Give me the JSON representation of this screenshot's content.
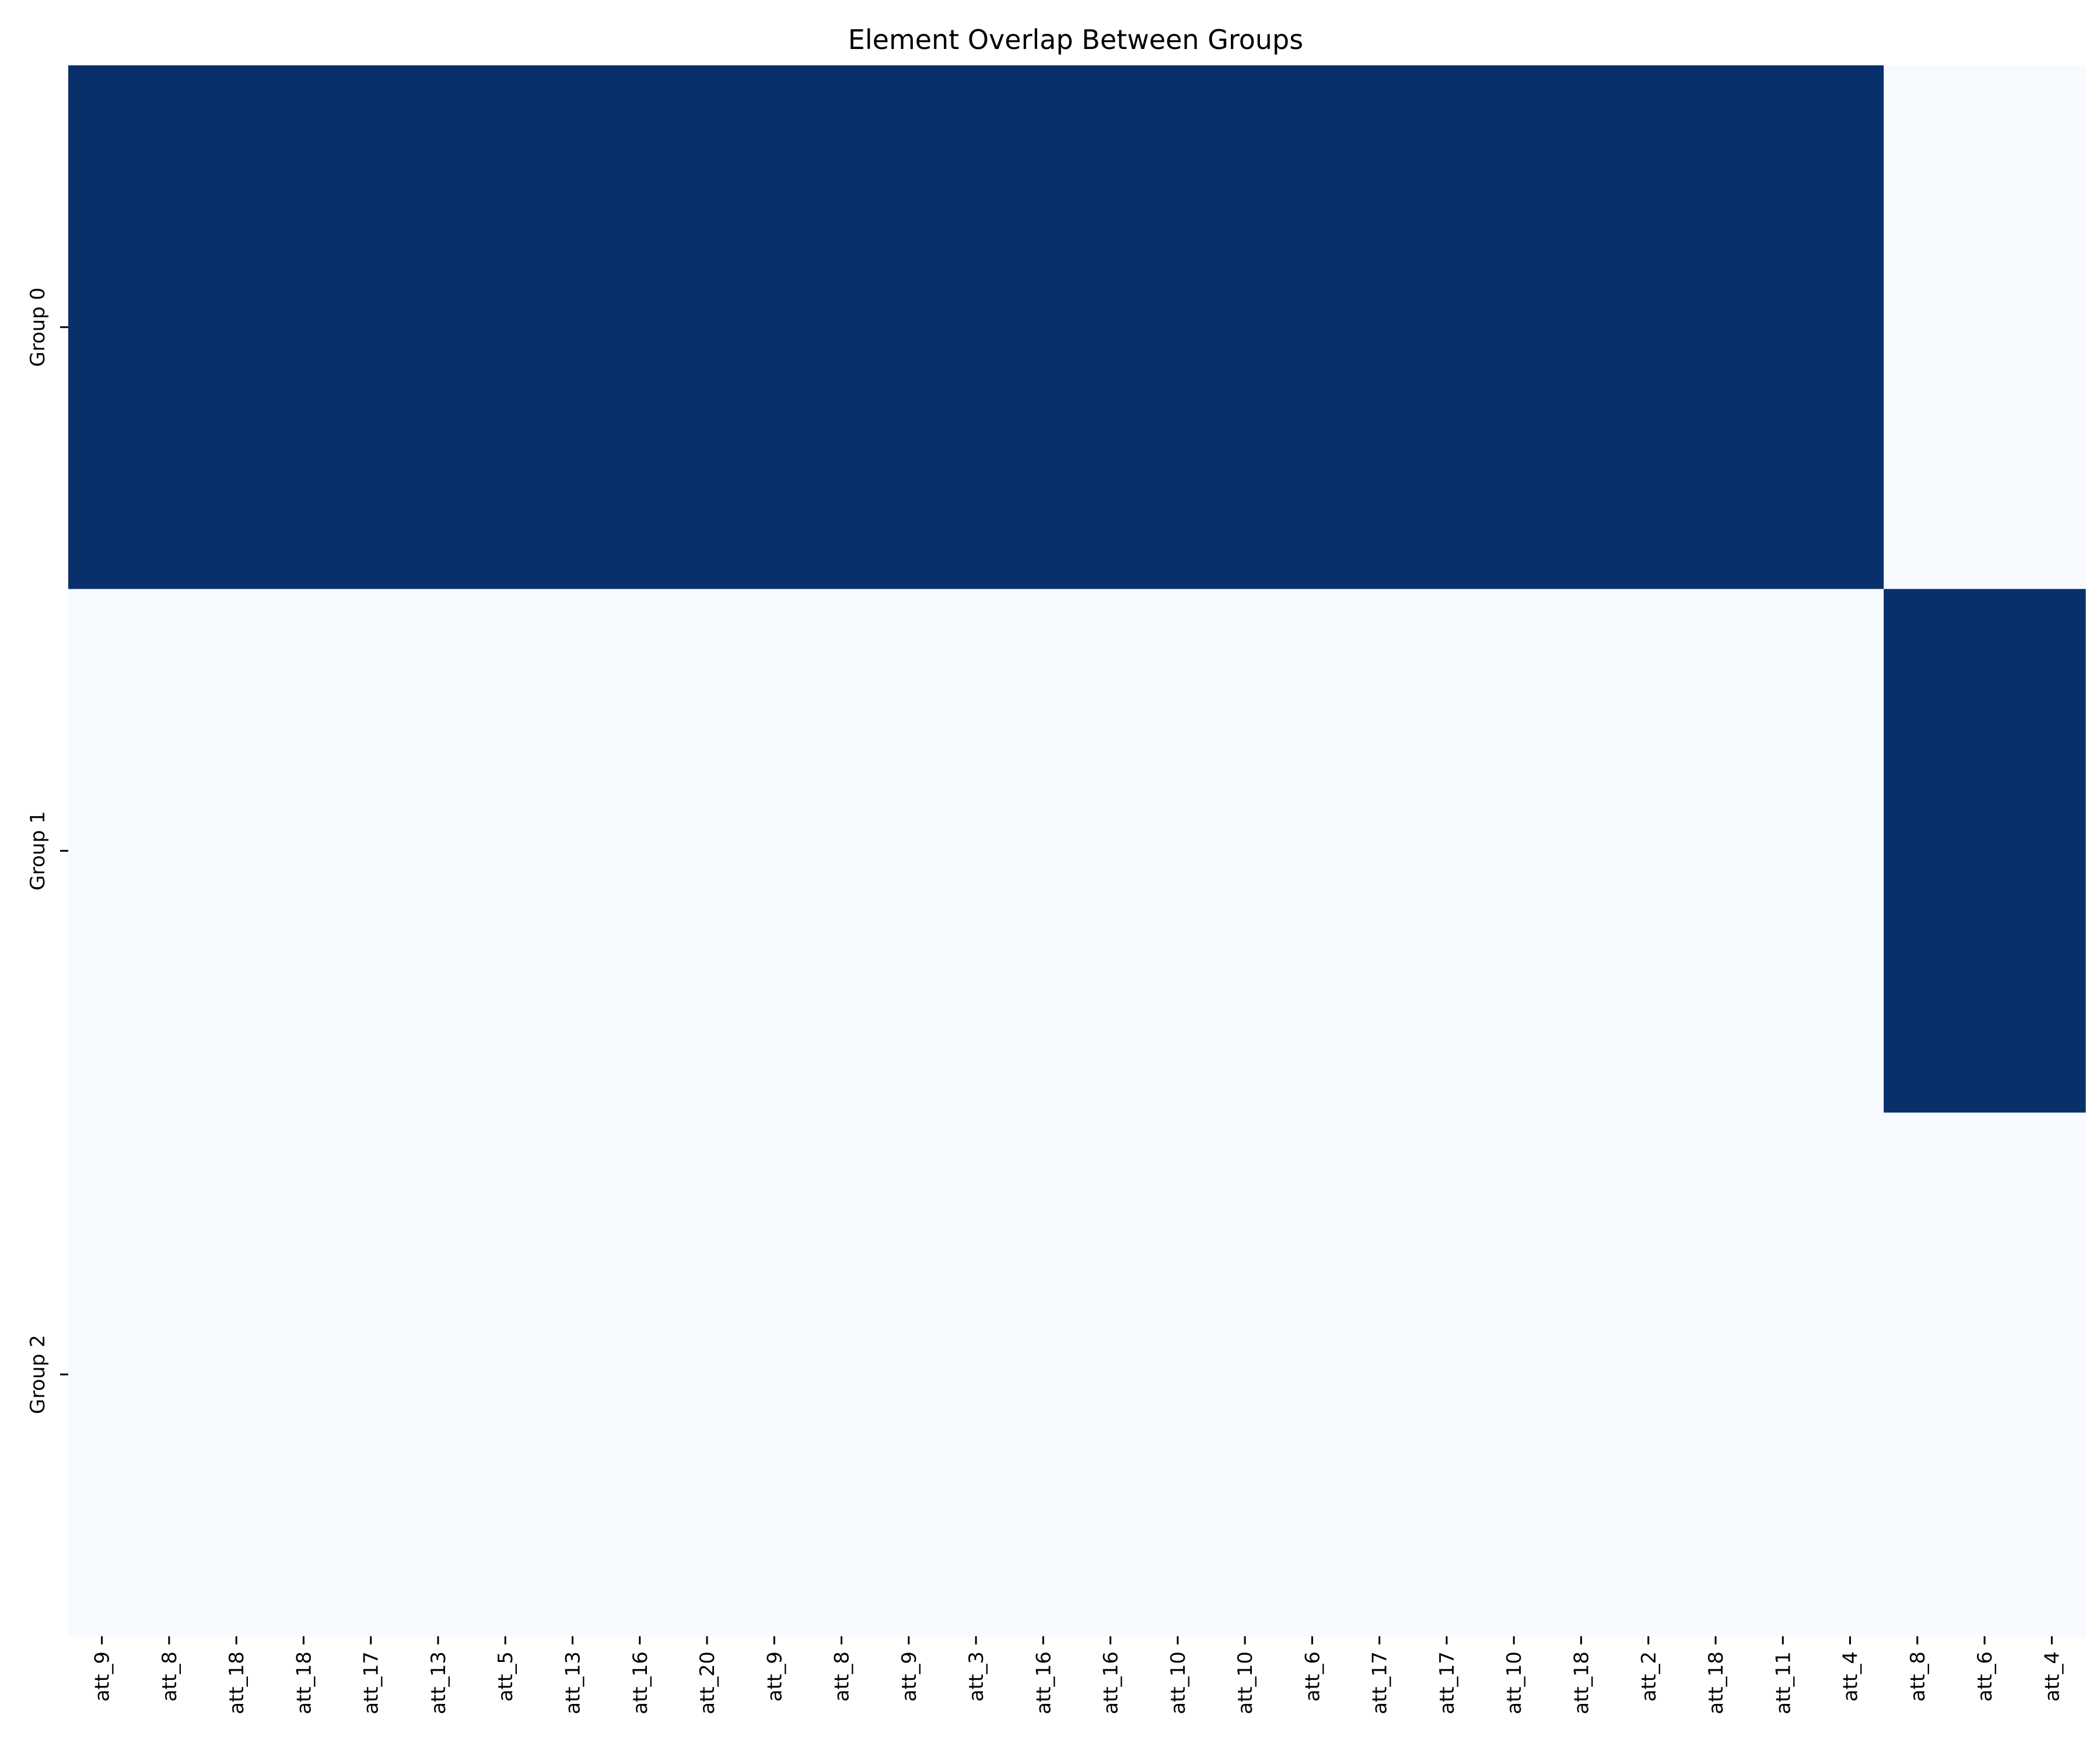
{
  "chart_data": {
    "type": "heatmap",
    "title": "Element Overlap Between Groups",
    "xlabel": "",
    "ylabel": "",
    "rows": [
      "Group 0",
      "Group 1",
      "Group 2"
    ],
    "columns": [
      "att_9",
      "att_8",
      "att_18",
      "att_18",
      "att_17",
      "att_13",
      "att_5",
      "att_13",
      "att_16",
      "att_20",
      "att_9",
      "att_8",
      "att_9",
      "att_3",
      "att_16",
      "att_16",
      "att_10",
      "att_10",
      "att_6",
      "att_17",
      "att_17",
      "att_10",
      "att_18",
      "att_2",
      "att_18",
      "att_11",
      "att_4",
      "att_8",
      "att_6",
      "att_4"
    ],
    "values": [
      [
        1,
        1,
        1,
        1,
        1,
        1,
        1,
        1,
        1,
        1,
        1,
        1,
        1,
        1,
        1,
        1,
        1,
        1,
        1,
        1,
        1,
        1,
        1,
        1,
        1,
        1,
        1,
        0,
        0,
        0
      ],
      [
        0,
        0,
        0,
        0,
        0,
        0,
        0,
        0,
        0,
        0,
        0,
        0,
        0,
        0,
        0,
        0,
        0,
        0,
        0,
        0,
        0,
        0,
        0,
        0,
        0,
        0,
        0,
        1,
        1,
        1
      ],
      [
        0,
        0,
        0,
        0,
        0,
        0,
        0,
        0,
        0,
        0,
        0,
        0,
        0,
        0,
        0,
        0,
        0,
        0,
        0,
        0,
        0,
        0,
        0,
        0,
        0,
        0,
        0,
        0,
        0,
        0
      ]
    ],
    "value_range": [
      0,
      1
    ],
    "colorscale": {
      "low": "#f7fbff",
      "high": "#08306b",
      "name": "Blues"
    },
    "colorbar": false,
    "grid": false
  }
}
